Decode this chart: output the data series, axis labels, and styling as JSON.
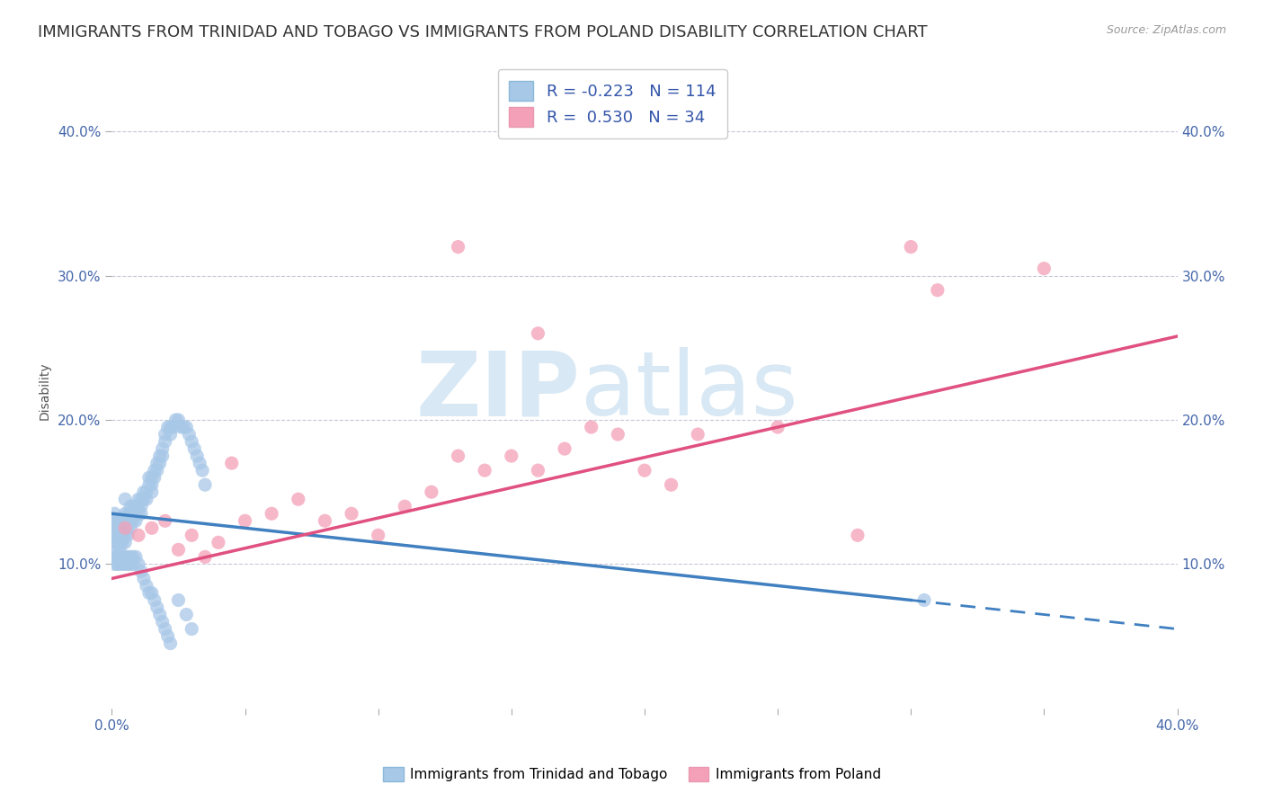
{
  "title": "IMMIGRANTS FROM TRINIDAD AND TOBAGO VS IMMIGRANTS FROM POLAND DISABILITY CORRELATION CHART",
  "source": "Source: ZipAtlas.com",
  "ylabel": "Disability",
  "xlim": [
    0.0,
    0.4
  ],
  "ylim": [
    0.0,
    0.44
  ],
  "yticks": [
    0.1,
    0.2,
    0.3,
    0.4
  ],
  "ytick_labels": [
    "10.0%",
    "20.0%",
    "30.0%",
    "40.0%"
  ],
  "xticks": [
    0.0,
    0.05,
    0.1,
    0.15,
    0.2,
    0.25,
    0.3,
    0.35,
    0.4
  ],
  "xtick_labels": [
    "0.0%",
    "",
    "",
    "",
    "",
    "",
    "",
    "",
    "40.0%"
  ],
  "r_blue": -0.223,
  "n_blue": 114,
  "r_pink": 0.53,
  "n_pink": 34,
  "blue_color": "#a8c8e8",
  "pink_color": "#f4a0b8",
  "blue_line_color": "#4080c0",
  "pink_line_color": "#e05080",
  "background_color": "#ffffff",
  "grid_color": "#c8c8d8",
  "watermark_zip": "ZIP",
  "watermark_atlas": "atlas",
  "watermark_color": "#d8e8f4",
  "legend_label_blue": "Immigrants from Trinidad and Tobago",
  "legend_label_pink": "Immigrants from Poland",
  "title_fontsize": 13,
  "axis_label_fontsize": 10,
  "tick_fontsize": 11,
  "blue_line_start_x": 0.0,
  "blue_line_start_y": 0.135,
  "blue_line_solid_end_x": 0.3,
  "blue_line_solid_end_y": 0.075,
  "blue_line_dash_end_x": 0.4,
  "blue_line_dash_end_y": 0.055,
  "pink_line_start_x": 0.0,
  "pink_line_start_y": 0.09,
  "pink_line_end_x": 0.4,
  "pink_line_end_y": 0.258,
  "blue_scatter_x": [
    0.001,
    0.001,
    0.001,
    0.001,
    0.001,
    0.002,
    0.002,
    0.002,
    0.002,
    0.002,
    0.003,
    0.003,
    0.003,
    0.003,
    0.003,
    0.004,
    0.004,
    0.004,
    0.004,
    0.004,
    0.005,
    0.005,
    0.005,
    0.005,
    0.005,
    0.006,
    0.006,
    0.006,
    0.006,
    0.007,
    0.007,
    0.007,
    0.007,
    0.008,
    0.008,
    0.008,
    0.009,
    0.009,
    0.009,
    0.01,
    0.01,
    0.01,
    0.011,
    0.011,
    0.011,
    0.012,
    0.012,
    0.013,
    0.013,
    0.014,
    0.014,
    0.015,
    0.015,
    0.015,
    0.016,
    0.016,
    0.017,
    0.017,
    0.018,
    0.018,
    0.019,
    0.019,
    0.02,
    0.02,
    0.021,
    0.022,
    0.022,
    0.023,
    0.024,
    0.025,
    0.026,
    0.027,
    0.028,
    0.029,
    0.03,
    0.031,
    0.032,
    0.033,
    0.034,
    0.035,
    0.001,
    0.001,
    0.002,
    0.002,
    0.003,
    0.003,
    0.004,
    0.004,
    0.005,
    0.005,
    0.006,
    0.006,
    0.007,
    0.007,
    0.008,
    0.008,
    0.009,
    0.01,
    0.011,
    0.012,
    0.013,
    0.014,
    0.015,
    0.016,
    0.017,
    0.018,
    0.019,
    0.02,
    0.021,
    0.022,
    0.025,
    0.028,
    0.03,
    0.305
  ],
  "blue_scatter_y": [
    0.135,
    0.13,
    0.125,
    0.12,
    0.115,
    0.13,
    0.125,
    0.12,
    0.115,
    0.11,
    0.13,
    0.125,
    0.12,
    0.115,
    0.11,
    0.13,
    0.125,
    0.12,
    0.115,
    0.13,
    0.145,
    0.135,
    0.125,
    0.12,
    0.115,
    0.135,
    0.13,
    0.125,
    0.12,
    0.14,
    0.135,
    0.13,
    0.125,
    0.14,
    0.135,
    0.13,
    0.14,
    0.135,
    0.13,
    0.145,
    0.14,
    0.135,
    0.145,
    0.14,
    0.135,
    0.15,
    0.145,
    0.15,
    0.145,
    0.16,
    0.155,
    0.16,
    0.155,
    0.15,
    0.165,
    0.16,
    0.17,
    0.165,
    0.175,
    0.17,
    0.18,
    0.175,
    0.19,
    0.185,
    0.195,
    0.195,
    0.19,
    0.195,
    0.2,
    0.2,
    0.195,
    0.195,
    0.195,
    0.19,
    0.185,
    0.18,
    0.175,
    0.17,
    0.165,
    0.155,
    0.105,
    0.1,
    0.105,
    0.1,
    0.105,
    0.1,
    0.105,
    0.1,
    0.105,
    0.1,
    0.105,
    0.1,
    0.105,
    0.1,
    0.105,
    0.1,
    0.105,
    0.1,
    0.095,
    0.09,
    0.085,
    0.08,
    0.08,
    0.075,
    0.07,
    0.065,
    0.06,
    0.055,
    0.05,
    0.045,
    0.075,
    0.065,
    0.055,
    0.075
  ],
  "pink_scatter_x": [
    0.005,
    0.01,
    0.015,
    0.02,
    0.025,
    0.03,
    0.035,
    0.04,
    0.05,
    0.06,
    0.07,
    0.08,
    0.09,
    0.1,
    0.11,
    0.12,
    0.13,
    0.14,
    0.15,
    0.16,
    0.17,
    0.18,
    0.19,
    0.2,
    0.21,
    0.22,
    0.25,
    0.28,
    0.3,
    0.31,
    0.13,
    0.16,
    0.045,
    0.35
  ],
  "pink_scatter_y": [
    0.125,
    0.12,
    0.125,
    0.13,
    0.11,
    0.12,
    0.105,
    0.115,
    0.13,
    0.135,
    0.145,
    0.13,
    0.135,
    0.12,
    0.14,
    0.15,
    0.175,
    0.165,
    0.175,
    0.165,
    0.18,
    0.195,
    0.19,
    0.165,
    0.155,
    0.19,
    0.195,
    0.12,
    0.32,
    0.29,
    0.32,
    0.26,
    0.17,
    0.305
  ]
}
